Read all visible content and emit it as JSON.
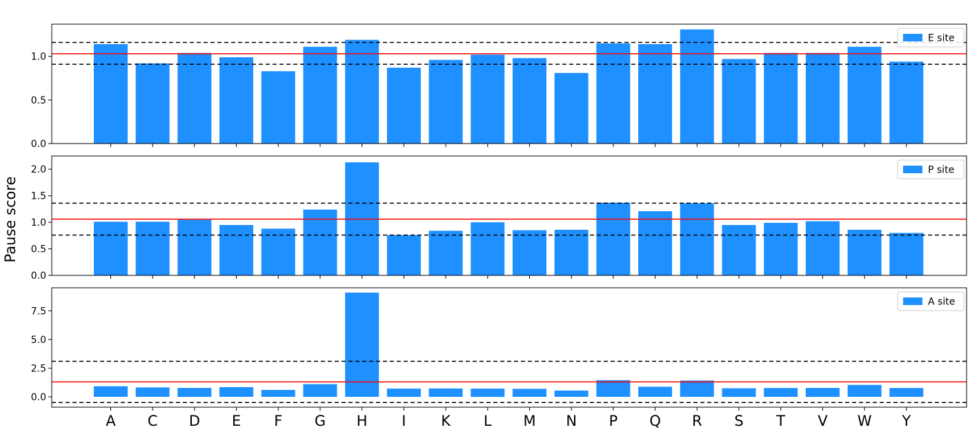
{
  "ylabel": "Pause score",
  "categories": [
    "A",
    "C",
    "D",
    "E",
    "F",
    "G",
    "H",
    "I",
    "K",
    "L",
    "M",
    "N",
    "P",
    "Q",
    "R",
    "S",
    "T",
    "V",
    "W",
    "Y"
  ],
  "bar_color": "#1e90ff",
  "mean_color": "#ff0000",
  "band_color": "#000000",
  "chart_data": [
    {
      "type": "bar",
      "legend": "E site",
      "legend_position": "top-right",
      "grid": false,
      "ylim": [
        0,
        1.37
      ],
      "yticks": [
        0.0,
        0.5,
        1.0
      ],
      "ytick_labels": [
        "0.0",
        "0.5",
        "1.0"
      ],
      "values": [
        1.14,
        0.92,
        1.04,
        0.99,
        0.83,
        1.11,
        1.19,
        0.87,
        0.96,
        1.02,
        0.98,
        0.81,
        1.15,
        1.14,
        1.31,
        0.97,
        1.04,
        1.04,
        1.11,
        0.94
      ],
      "mean_line": 1.03,
      "band_lines": [
        0.91,
        1.16
      ]
    },
    {
      "type": "bar",
      "legend": "P site",
      "legend_position": "top-right",
      "grid": false,
      "ylim": [
        0,
        2.25
      ],
      "yticks": [
        0.0,
        0.5,
        1.0,
        1.5,
        2.0
      ],
      "ytick_labels": [
        "0.0",
        "0.5",
        "1.0",
        "1.5",
        "2.0"
      ],
      "values": [
        1.01,
        1.01,
        1.05,
        0.95,
        0.88,
        1.24,
        2.13,
        0.76,
        0.84,
        1.0,
        0.85,
        0.86,
        1.37,
        1.21,
        1.36,
        0.95,
        0.99,
        1.02,
        0.86,
        0.8
      ],
      "mean_line": 1.06,
      "band_lines": [
        0.76,
        1.36
      ]
    },
    {
      "type": "bar",
      "legend": "A site",
      "legend_position": "top-right",
      "grid": false,
      "ylim": [
        -0.9,
        9.5
      ],
      "yticks": [
        0.0,
        2.5,
        5.0,
        7.5
      ],
      "ytick_labels": [
        "0.0",
        "2.5",
        "5.0",
        "7.5"
      ],
      "values": [
        0.92,
        0.82,
        0.78,
        0.85,
        0.6,
        1.11,
        9.08,
        0.72,
        0.73,
        0.72,
        0.7,
        0.55,
        1.45,
        0.88,
        1.42,
        0.75,
        0.77,
        0.78,
        1.04,
        0.77
      ],
      "mean_line": 1.3,
      "band_lines": [
        -0.5,
        3.1
      ]
    }
  ]
}
